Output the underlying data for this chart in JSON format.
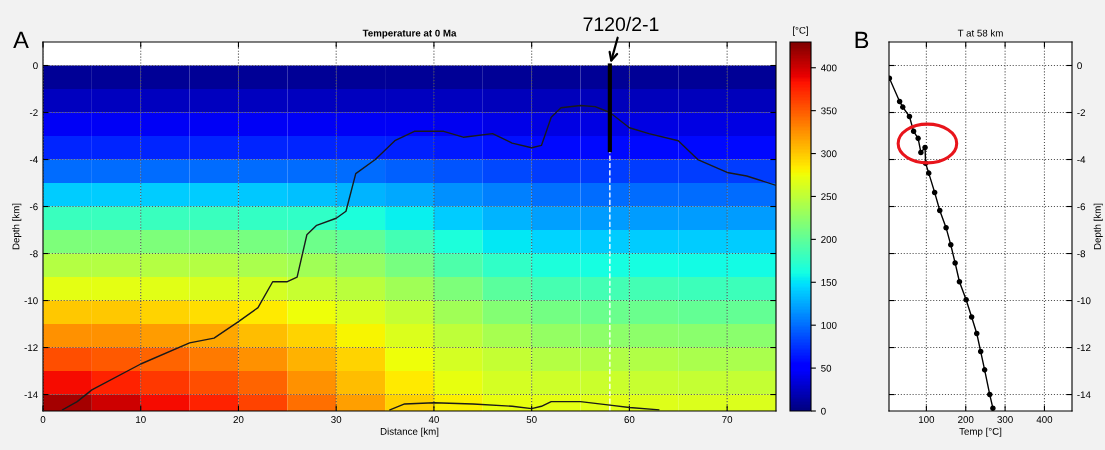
{
  "chart_data": [
    {
      "type": "heatmap",
      "title": "Temperature at 0 Ma",
      "xlabel": "Distance [km]",
      "ylabel": "Depth [km]",
      "clabel": "[°C]",
      "x": [
        2.5,
        7.5,
        12.5,
        17.5,
        22.5,
        27.5,
        32.5,
        37.5,
        42.5,
        47.5,
        52.5,
        57.5,
        62.5,
        67.5,
        72.5
      ],
      "y": [
        -0.5,
        -1.5,
        -2.5,
        -3.5,
        -4.5,
        -5.5,
        -6.5,
        -7.5,
        -8.5,
        -9.5,
        -10.5,
        -11.5,
        -12.5,
        -13.5,
        -14.5
      ],
      "cells": [
        [
          10,
          10,
          10,
          10,
          10,
          10,
          10,
          10,
          10,
          10,
          10,
          10,
          10,
          10,
          10
        ],
        [
          25,
          25,
          25,
          25,
          25,
          25,
          25,
          25,
          25,
          23,
          22,
          22,
          22,
          22,
          22
        ],
        [
          45,
          45,
          45,
          45,
          45,
          45,
          45,
          45,
          42,
          40,
          38,
          38,
          38,
          38,
          38
        ],
        [
          70,
          70,
          70,
          70,
          70,
          70,
          70,
          68,
          65,
          62,
          58,
          58,
          58,
          58,
          58
        ],
        [
          100,
          100,
          100,
          100,
          100,
          100,
          100,
          95,
          90,
          85,
          80,
          80,
          80,
          80,
          80
        ],
        [
          140,
          140,
          140,
          140,
          138,
          135,
          130,
          125,
          115,
          108,
          102,
          100,
          100,
          100,
          100
        ],
        [
          180,
          180,
          180,
          180,
          178,
          175,
          165,
          155,
          140,
          130,
          122,
          120,
          120,
          120,
          120
        ],
        [
          215,
          215,
          215,
          215,
          212,
          208,
          200,
          185,
          165,
          152,
          143,
          140,
          140,
          140,
          140
        ],
        [
          245,
          245,
          245,
          245,
          240,
          235,
          228,
          212,
          190,
          175,
          165,
          162,
          162,
          160,
          160
        ],
        [
          270,
          270,
          268,
          265,
          262,
          255,
          248,
          235,
          215,
          198,
          188,
          185,
          185,
          182,
          182
        ],
        [
          300,
          300,
          295,
          290,
          285,
          275,
          265,
          252,
          235,
          220,
          210,
          205,
          205,
          203,
          203
        ],
        [
          325,
          325,
          320,
          315,
          305,
          295,
          280,
          265,
          250,
          238,
          228,
          225,
          225,
          222,
          222
        ],
        [
          355,
          350,
          345,
          335,
          325,
          310,
          295,
          275,
          262,
          252,
          245,
          242,
          242,
          240,
          240
        ],
        [
          385,
          375,
          365,
          355,
          345,
          325,
          305,
          285,
          272,
          262,
          258,
          256,
          255,
          253,
          253
        ],
        [
          415,
          400,
          385,
          375,
          360,
          340,
          318,
          295,
          282,
          272,
          270,
          268,
          266,
          264,
          264
        ]
      ],
      "clim": [
        0,
        430
      ],
      "cticks": [
        0,
        50,
        100,
        150,
        200,
        250,
        300,
        350,
        400
      ],
      "xlim": [
        0,
        75
      ],
      "xticks": [
        0,
        10,
        20,
        30,
        40,
        50,
        60,
        70
      ],
      "ylim": [
        -14.7,
        1
      ],
      "yticks": [
        0,
        -2,
        -4,
        -6,
        -8,
        -10,
        -12,
        -14
      ],
      "grid": true,
      "series": [
        {
          "type": "line",
          "color": "#1a1a1a",
          "x": [
            2,
            3.5,
            5,
            10,
            15,
            17.5,
            20,
            22,
            23.5,
            25,
            26,
            27,
            28,
            30,
            31,
            32,
            34,
            36,
            38,
            41,
            43,
            46,
            48,
            50,
            51,
            52,
            53,
            55,
            56.5,
            58,
            60,
            62,
            65,
            67,
            70,
            72,
            75
          ],
          "values": [
            -14.65,
            -14.3,
            -13.8,
            -12.7,
            -11.8,
            -11.6,
            -10.9,
            -10.3,
            -9.2,
            -9.2,
            -9.0,
            -7.2,
            -6.8,
            -6.5,
            -6.2,
            -4.6,
            -4.0,
            -3.2,
            -2.8,
            -2.8,
            -3.05,
            -2.9,
            -3.3,
            -3.5,
            -3.4,
            -2.2,
            -1.8,
            -1.7,
            -1.75,
            -2.0,
            -2.65,
            -2.9,
            -3.2,
            -4.0,
            -4.55,
            -4.7,
            -5.1
          ]
        },
        {
          "type": "line",
          "color": "#1a1a1a",
          "x": [
            35.5,
            37,
            40,
            44,
            48,
            50,
            51,
            52,
            55,
            58,
            60,
            63
          ],
          "values": [
            -14.65,
            -14.4,
            -14.35,
            -14.4,
            -14.5,
            -14.6,
            -14.5,
            -14.3,
            -14.3,
            -14.45,
            -14.55,
            -14.65
          ]
        },
        {
          "type": "line",
          "color": "#000000",
          "x": [
            58,
            58
          ],
          "values": [
            0,
            -3.6
          ]
        }
      ],
      "ref_lines": [
        {
          "axis": "x",
          "value": 58,
          "color": "#ffffff",
          "line_style": "dashed"
        }
      ],
      "annotations": [
        "A",
        {
          "text": "7120/2-1",
          "x": 58,
          "y": 0
        }
      ]
    },
    {
      "type": "line",
      "title": "T at 58 km",
      "xlabel": "Temp [°C]",
      "ylabel": "Depth [km]",
      "xlim": [
        5,
        470
      ],
      "xticks": [
        100,
        200,
        300,
        400
      ],
      "ylim": [
        -14.7,
        1
      ],
      "yticks": [
        0,
        -2,
        -4,
        -6,
        -8,
        -10,
        -12,
        -14
      ],
      "grid": true,
      "marker": "circle",
      "line_style": "solid",
      "series": [
        {
          "color": "#000000",
          "x": [
            6,
            32,
            40,
            57,
            67.5,
            79,
            86,
            96.6,
            98,
            106,
            121,
            134,
            150,
            162,
            173,
            184,
            201,
            215,
            228,
            238,
            248,
            261,
            269
          ],
          "values": [
            -0.54,
            -1.53,
            -1.77,
            -2.17,
            -2.8,
            -3.1,
            -3.7,
            -3.49,
            -4.16,
            -4.58,
            -5.4,
            -6.17,
            -6.9,
            -7.63,
            -8.4,
            -9.2,
            -9.97,
            -10.7,
            -11.4,
            -12.17,
            -12.95,
            -14.0,
            -14.58
          ]
        }
      ],
      "annotations": [
        "B"
      ]
    }
  ]
}
